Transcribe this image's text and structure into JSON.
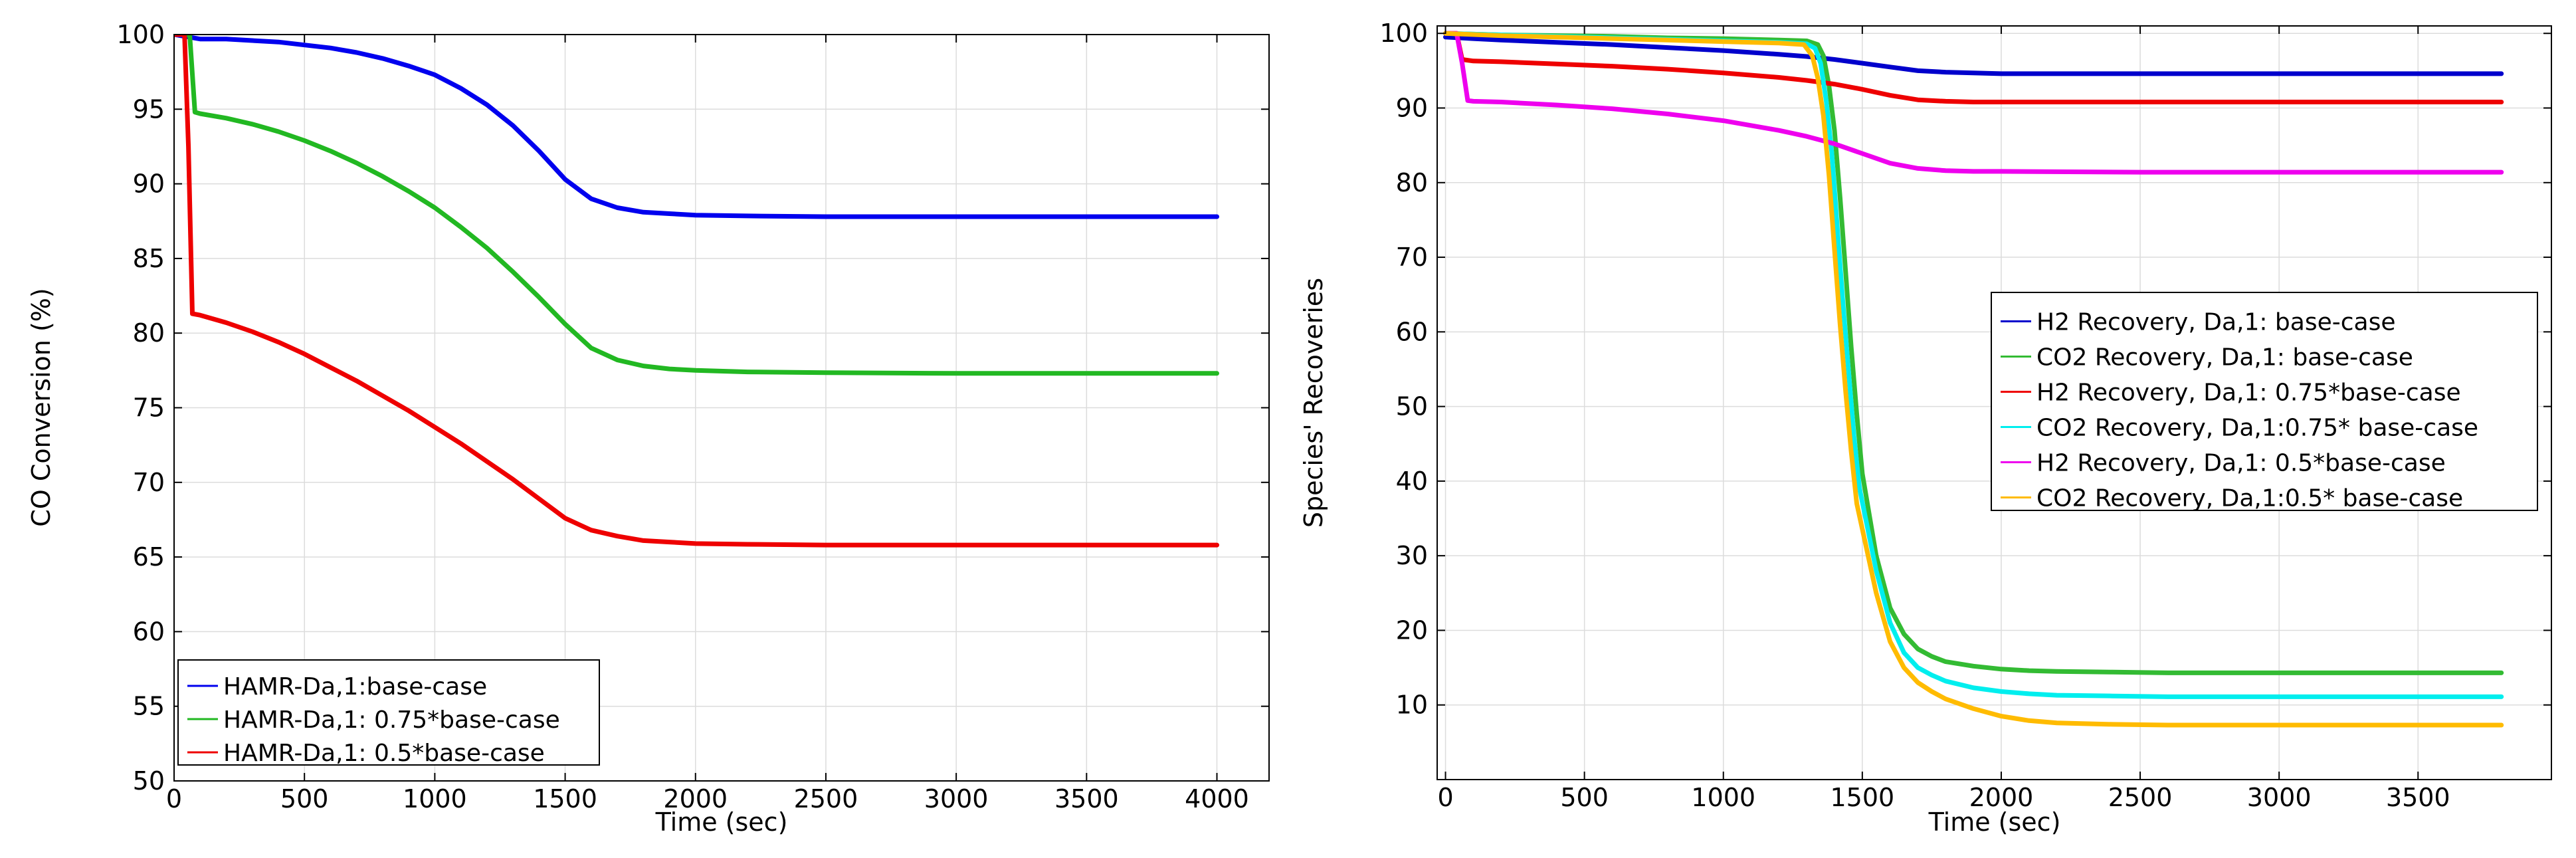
{
  "chart_data": [
    {
      "type": "line",
      "xlabel": "Time (sec)",
      "ylabel": "CO Conversion (%)",
      "xlim": [
        0,
        4200
      ],
      "ylim": [
        50,
        100
      ],
      "xticks": [
        0,
        500,
        1000,
        1500,
        2000,
        2500,
        3000,
        3500,
        4000
      ],
      "yticks": [
        50,
        55,
        60,
        65,
        70,
        75,
        80,
        85,
        90,
        95,
        100
      ],
      "grid": true,
      "legend_position": "bottom-left",
      "series": [
        {
          "name": "HAMR-Da,1:base-case",
          "color": "#0000ee",
          "x": [
            0,
            100,
            200,
            300,
            400,
            500,
            600,
            700,
            800,
            900,
            1000,
            1100,
            1200,
            1300,
            1400,
            1500,
            1600,
            1700,
            1800,
            1900,
            2000,
            2200,
            2500,
            3000,
            3500,
            4000
          ],
          "y": [
            100,
            99.7,
            99.7,
            99.6,
            99.5,
            99.3,
            99.1,
            98.8,
            98.4,
            97.9,
            97.3,
            96.4,
            95.3,
            93.9,
            92.2,
            90.3,
            89.0,
            88.4,
            88.1,
            88.0,
            87.9,
            87.85,
            87.8,
            87.8,
            87.8,
            87.8
          ]
        },
        {
          "name": "HAMR-Da,1: 0.75*base-case",
          "color": "#22b822",
          "x": [
            0,
            60,
            80,
            100,
            200,
            300,
            400,
            500,
            600,
            700,
            800,
            900,
            1000,
            1100,
            1200,
            1300,
            1400,
            1500,
            1600,
            1700,
            1800,
            1900,
            2000,
            2200,
            2500,
            3000,
            3500,
            4000
          ],
          "y": [
            100,
            100,
            94.8,
            94.7,
            94.4,
            94.0,
            93.5,
            92.9,
            92.2,
            91.4,
            90.5,
            89.5,
            88.4,
            87.1,
            85.7,
            84.1,
            82.4,
            80.6,
            79.0,
            78.2,
            77.8,
            77.6,
            77.5,
            77.4,
            77.35,
            77.3,
            77.3,
            77.3
          ]
        },
        {
          "name": "HAMR-Da,1: 0.5*base-case",
          "color": "#ee0000",
          "x": [
            0,
            40,
            55,
            70,
            100,
            200,
            300,
            400,
            500,
            600,
            700,
            800,
            900,
            1000,
            1100,
            1200,
            1300,
            1400,
            1500,
            1600,
            1700,
            1800,
            1900,
            2000,
            2200,
            2500,
            3000,
            3500,
            4000
          ],
          "y": [
            100,
            100,
            92.5,
            81.3,
            81.2,
            80.7,
            80.1,
            79.4,
            78.6,
            77.7,
            76.8,
            75.8,
            74.8,
            73.7,
            72.6,
            71.4,
            70.2,
            68.9,
            67.6,
            66.8,
            66.4,
            66.1,
            66.0,
            65.9,
            65.85,
            65.8,
            65.8,
            65.8,
            65.8
          ]
        }
      ]
    },
    {
      "type": "line",
      "xlabel": "Time (sec)",
      "ylabel": "Species' Recoveries",
      "xlim": [
        -30,
        3980
      ],
      "ylim": [
        0,
        101
      ],
      "xticks": [
        0,
        500,
        1000,
        1500,
        2000,
        2500,
        3000,
        3500
      ],
      "yticks": [
        10,
        20,
        30,
        40,
        50,
        60,
        70,
        80,
        90,
        100
      ],
      "grid": true,
      "legend_position": "center-right",
      "series": [
        {
          "name": "H2 Recovery, Da,1: base-case",
          "color": "#0000cc",
          "x": [
            0,
            100,
            200,
            400,
            600,
            800,
            1000,
            1200,
            1300,
            1400,
            1500,
            1600,
            1700,
            1800,
            1900,
            2000,
            2500,
            3000,
            3500,
            3800
          ],
          "y": [
            99.5,
            99.3,
            99.1,
            98.8,
            98.5,
            98.1,
            97.7,
            97.2,
            96.9,
            96.5,
            96.0,
            95.5,
            95.0,
            94.8,
            94.7,
            94.6,
            94.6,
            94.6,
            94.6,
            94.6
          ]
        },
        {
          "name": "CO2 Recovery, Da,1: base-case",
          "color": "#33bb33",
          "x": [
            0,
            200,
            400,
            600,
            800,
            1000,
            1200,
            1300,
            1340,
            1360,
            1380,
            1400,
            1420,
            1440,
            1460,
            1480,
            1500,
            1550,
            1600,
            1650,
            1700,
            1750,
            1800,
            1900,
            2000,
            2100,
            2200,
            2400,
            2600,
            3000,
            3500,
            3800
          ],
          "y": [
            100,
            99.8,
            99.7,
            99.6,
            99.4,
            99.3,
            99.1,
            99.0,
            98.5,
            97,
            93,
            87,
            78,
            68,
            58,
            49,
            41,
            30,
            23,
            19.5,
            17.5,
            16.5,
            15.8,
            15.2,
            14.8,
            14.6,
            14.5,
            14.4,
            14.3,
            14.3,
            14.3,
            14.3
          ]
        },
        {
          "name": "H2 Recovery, Da,1: 0.75*base-case",
          "color": "#ee0000",
          "x": [
            0,
            40,
            60,
            100,
            200,
            400,
            600,
            800,
            1000,
            1200,
            1300,
            1400,
            1500,
            1600,
            1700,
            1800,
            1900,
            2000,
            2500,
            3000,
            3500,
            3800
          ],
          "y": [
            100,
            100,
            96.5,
            96.3,
            96.2,
            95.9,
            95.6,
            95.2,
            94.7,
            94.1,
            93.7,
            93.2,
            92.5,
            91.7,
            91.1,
            90.9,
            90.8,
            90.8,
            90.8,
            90.8,
            90.8,
            90.8
          ]
        },
        {
          "name": "CO2 Recovery, Da,1:0.75* base-case",
          "color": "#00eeee",
          "x": [
            0,
            200,
            400,
            600,
            800,
            1000,
            1200,
            1300,
            1330,
            1350,
            1370,
            1390,
            1410,
            1430,
            1450,
            1470,
            1490,
            1550,
            1600,
            1650,
            1700,
            1750,
            1800,
            1900,
            2000,
            2100,
            2200,
            2400,
            2600,
            3000,
            3500,
            3800
          ],
          "y": [
            100,
            99.8,
            99.6,
            99.4,
            99.2,
            99.0,
            98.8,
            98.6,
            98,
            96,
            91,
            84,
            74,
            64,
            55,
            46,
            39,
            28,
            21,
            17,
            15,
            14,
            13.2,
            12.3,
            11.8,
            11.5,
            11.3,
            11.2,
            11.1,
            11.1,
            11.1,
            11.1
          ]
        },
        {
          "name": "H2 Recovery, Da,1: 0.5*base-case",
          "color": "#ee00ee",
          "x": [
            0,
            40,
            60,
            80,
            100,
            200,
            400,
            600,
            800,
            1000,
            1200,
            1300,
            1400,
            1500,
            1600,
            1700,
            1800,
            1900,
            2000,
            2500,
            3000,
            3500,
            3800
          ],
          "y": [
            100,
            100,
            96,
            91.0,
            90.9,
            90.8,
            90.4,
            89.9,
            89.2,
            88.3,
            87.0,
            86.2,
            85.2,
            83.9,
            82.6,
            81.9,
            81.6,
            81.5,
            81.5,
            81.4,
            81.4,
            81.4,
            81.4
          ]
        },
        {
          "name": "CO2 Recovery, Da,1:0.5* base-case",
          "color": "#ffbb00",
          "x": [
            0,
            200,
            400,
            600,
            800,
            1000,
            1200,
            1290,
            1320,
            1340,
            1360,
            1380,
            1400,
            1420,
            1440,
            1460,
            1480,
            1550,
            1600,
            1650,
            1700,
            1750,
            1800,
            1900,
            2000,
            2100,
            2200,
            2400,
            2600,
            3000,
            3500,
            3800
          ],
          "y": [
            100,
            99.7,
            99.5,
            99.3,
            99.1,
            98.9,
            98.7,
            98.5,
            97,
            94,
            89,
            81,
            71,
            61,
            52,
            44,
            37,
            25,
            18.5,
            15,
            13,
            11.8,
            10.8,
            9.5,
            8.5,
            7.9,
            7.6,
            7.4,
            7.3,
            7.3,
            7.3,
            7.3
          ]
        }
      ]
    }
  ]
}
